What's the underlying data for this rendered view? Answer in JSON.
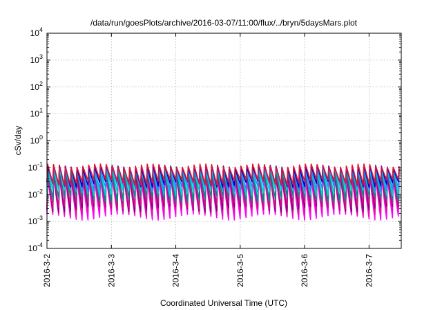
{
  "chart_data": {
    "type": "line",
    "title": "/data/run/goesPlots/archive/2016-03-07/11:00/flux/../bryn/5daysMars.plot",
    "xlabel": "Coordinated Universal Time (UTC)",
    "ylabel": "cSv/day",
    "xlim": [
      "2016-03-02",
      "2016-03-07T12:00"
    ],
    "ylim": [
      0.0001,
      10000
    ],
    "yscale": "log",
    "grid": true,
    "legend": "none",
    "x_ticks": [
      "2016-3-2",
      "2016-3-3",
      "2016-3-4",
      "2016-3-5",
      "2016-3-6",
      "2016-3-7"
    ],
    "y_ticks": [
      {
        "base": "10",
        "exp": "-4"
      },
      {
        "base": "10",
        "exp": "-3"
      },
      {
        "base": "10",
        "exp": "-2"
      },
      {
        "base": "10",
        "exp": "-1"
      },
      {
        "base": "10",
        "exp": "0"
      },
      {
        "base": "10",
        "exp": "1"
      },
      {
        "base": "10",
        "exp": "2"
      },
      {
        "base": "10",
        "exp": "3"
      },
      {
        "base": "10",
        "exp": "4"
      }
    ],
    "pattern": {
      "description_shape": "sawtooth",
      "cycles_per_day": 11,
      "start": "2016-03-02",
      "end": "2016-03-07T12:00"
    },
    "series": [
      {
        "color": "#ff00ff",
        "peak": 0.04,
        "trough": 0.0015
      },
      {
        "color": "#e0149a",
        "peak": 0.05,
        "trough": 0.0022
      },
      {
        "color": "#800080",
        "peak": 0.06,
        "trough": 0.003
      },
      {
        "color": "#c71585",
        "peak": 0.07,
        "trough": 0.004
      },
      {
        "color": "#008b8b",
        "peak": 0.08,
        "trough": 0.007
      },
      {
        "color": "#00ced1",
        "peak": 0.09,
        "trough": 0.012
      },
      {
        "color": "#1e90ff",
        "peak": 0.1,
        "trough": 0.018
      },
      {
        "color": "#0000cd",
        "peak": 0.11,
        "trough": 0.025
      },
      {
        "color": "#dc143c",
        "peak": 0.12,
        "trough": 0.03
      }
    ]
  }
}
